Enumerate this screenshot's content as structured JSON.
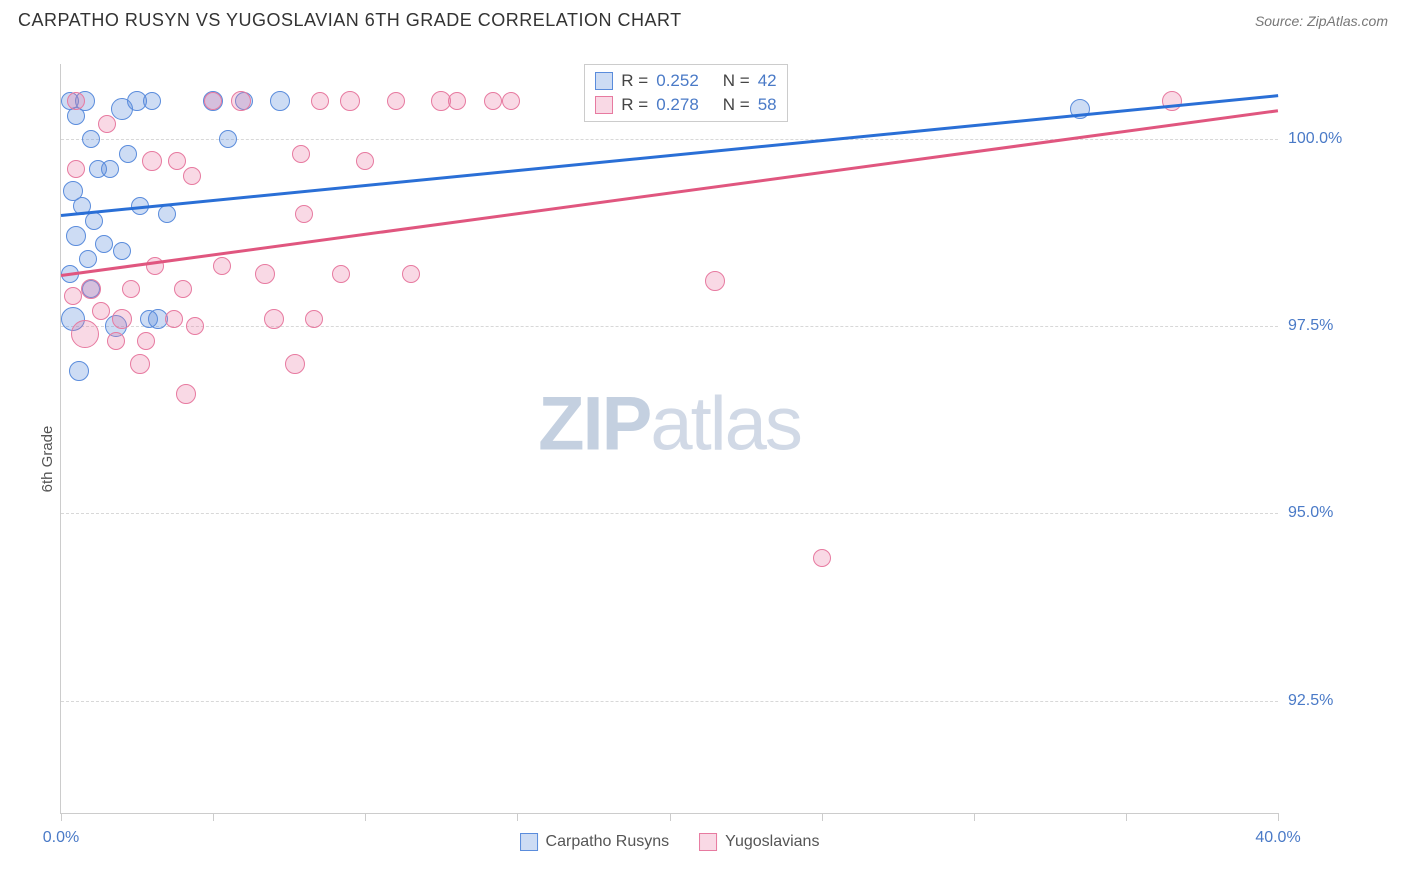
{
  "header": {
    "title": "CARPATHO RUSYN VS YUGOSLAVIAN 6TH GRADE CORRELATION CHART",
    "source": "Source: ZipAtlas.com"
  },
  "chart": {
    "type": "scatter",
    "ylabel": "6th Grade",
    "watermark_a": "ZIP",
    "watermark_b": "atlas",
    "background_color": "#ffffff",
    "grid_color": "#d8d8d8",
    "axis_color": "#cccccc",
    "xlim": [
      0,
      40
    ],
    "ylim": [
      91,
      101
    ],
    "xticks": [
      0,
      5,
      10,
      15,
      20,
      25,
      30,
      35,
      40
    ],
    "xlabels_shown": {
      "0": "0.0%",
      "40": "40.0%"
    },
    "yticks": [
      92.5,
      95.0,
      97.5,
      100.0
    ],
    "ylabel_fmt": {
      "92.5": "92.5%",
      "95.0": "95.0%",
      "97.5": "97.5%",
      "100.0": "100.0%"
    },
    "series": [
      {
        "name": "Carpatho Rusyns",
        "fill": "rgba(90,140,220,0.30)",
        "stroke": "#5a8cdc",
        "trend_color": "#2a6fd6",
        "trend": {
          "x0": 0,
          "y0": 99.0,
          "x1": 40,
          "y1": 100.6
        },
        "stats": {
          "r_label": "R =",
          "r": "0.252",
          "n_label": "N =",
          "n": "42"
        },
        "points": [
          {
            "x": 0.3,
            "y": 100.5,
            "r": 9
          },
          {
            "x": 0.5,
            "y": 100.3,
            "r": 9
          },
          {
            "x": 0.8,
            "y": 100.5,
            "r": 10
          },
          {
            "x": 1.0,
            "y": 100.0,
            "r": 9
          },
          {
            "x": 1.2,
            "y": 99.6,
            "r": 9
          },
          {
            "x": 0.4,
            "y": 99.3,
            "r": 10
          },
          {
            "x": 0.7,
            "y": 99.1,
            "r": 9
          },
          {
            "x": 1.1,
            "y": 98.9,
            "r": 9
          },
          {
            "x": 0.5,
            "y": 98.7,
            "r": 10
          },
          {
            "x": 0.9,
            "y": 98.4,
            "r": 9
          },
          {
            "x": 1.4,
            "y": 98.6,
            "r": 9
          },
          {
            "x": 0.3,
            "y": 98.2,
            "r": 9
          },
          {
            "x": 1.0,
            "y": 98.0,
            "r": 9
          },
          {
            "x": 1.6,
            "y": 99.6,
            "r": 9
          },
          {
            "x": 2.0,
            "y": 100.4,
            "r": 11
          },
          {
            "x": 2.2,
            "y": 99.8,
            "r": 9
          },
          {
            "x": 2.5,
            "y": 100.5,
            "r": 10
          },
          {
            "x": 2.6,
            "y": 99.1,
            "r": 9
          },
          {
            "x": 2.0,
            "y": 98.5,
            "r": 9
          },
          {
            "x": 3.0,
            "y": 100.5,
            "r": 9
          },
          {
            "x": 3.5,
            "y": 99.0,
            "r": 9
          },
          {
            "x": 3.2,
            "y": 97.6,
            "r": 10
          },
          {
            "x": 1.8,
            "y": 97.5,
            "r": 11
          },
          {
            "x": 0.4,
            "y": 97.6,
            "r": 12
          },
          {
            "x": 0.6,
            "y": 96.9,
            "r": 10
          },
          {
            "x": 2.9,
            "y": 97.6,
            "r": 9
          },
          {
            "x": 5.0,
            "y": 100.5,
            "r": 10
          },
          {
            "x": 5.5,
            "y": 100.0,
            "r": 9
          },
          {
            "x": 6.0,
            "y": 100.5,
            "r": 9
          },
          {
            "x": 7.2,
            "y": 100.5,
            "r": 10
          },
          {
            "x": 33.5,
            "y": 100.4,
            "r": 10
          }
        ]
      },
      {
        "name": "Yugoslavians",
        "fill": "rgba(235,120,160,0.28)",
        "stroke": "#e77aa0",
        "trend_color": "#e0567f",
        "trend": {
          "x0": 0,
          "y0": 98.2,
          "x1": 40,
          "y1": 100.4
        },
        "stats": {
          "r_label": "R =",
          "r": "0.278",
          "n_label": "N =",
          "n": "58"
        },
        "points": [
          {
            "x": 0.5,
            "y": 100.5,
            "r": 9
          },
          {
            "x": 1.5,
            "y": 100.2,
            "r": 9
          },
          {
            "x": 3.0,
            "y": 99.7,
            "r": 10
          },
          {
            "x": 4.3,
            "y": 99.5,
            "r": 9
          },
          {
            "x": 5.0,
            "y": 100.5,
            "r": 9
          },
          {
            "x": 5.9,
            "y": 100.5,
            "r": 10
          },
          {
            "x": 6.7,
            "y": 98.2,
            "r": 10
          },
          {
            "x": 8.0,
            "y": 99.0,
            "r": 9
          },
          {
            "x": 8.5,
            "y": 100.5,
            "r": 9
          },
          {
            "x": 9.2,
            "y": 98.2,
            "r": 9
          },
          {
            "x": 9.5,
            "y": 100.5,
            "r": 10
          },
          {
            "x": 10.0,
            "y": 99.7,
            "r": 9
          },
          {
            "x": 11.0,
            "y": 100.5,
            "r": 9
          },
          {
            "x": 11.5,
            "y": 98.2,
            "r": 9
          },
          {
            "x": 12.5,
            "y": 100.5,
            "r": 10
          },
          {
            "x": 13.0,
            "y": 100.5,
            "r": 9
          },
          {
            "x": 14.2,
            "y": 100.5,
            "r": 9
          },
          {
            "x": 14.8,
            "y": 100.5,
            "r": 9
          },
          {
            "x": 1.0,
            "y": 98.0,
            "r": 10
          },
          {
            "x": 1.3,
            "y": 97.7,
            "r": 9
          },
          {
            "x": 2.0,
            "y": 97.6,
            "r": 10
          },
          {
            "x": 2.3,
            "y": 98.0,
            "r": 9
          },
          {
            "x": 0.8,
            "y": 97.4,
            "r": 14
          },
          {
            "x": 0.4,
            "y": 97.9,
            "r": 9
          },
          {
            "x": 1.8,
            "y": 97.3,
            "r": 9
          },
          {
            "x": 2.6,
            "y": 97.0,
            "r": 10
          },
          {
            "x": 3.1,
            "y": 98.3,
            "r": 9
          },
          {
            "x": 3.8,
            "y": 99.7,
            "r": 9
          },
          {
            "x": 4.0,
            "y": 98.0,
            "r": 9
          },
          {
            "x": 4.4,
            "y": 97.5,
            "r": 9
          },
          {
            "x": 0.5,
            "y": 99.6,
            "r": 9
          },
          {
            "x": 3.7,
            "y": 97.6,
            "r": 9
          },
          {
            "x": 5.3,
            "y": 98.3,
            "r": 9
          },
          {
            "x": 7.0,
            "y": 97.6,
            "r": 10
          },
          {
            "x": 7.7,
            "y": 97.0,
            "r": 10
          },
          {
            "x": 8.3,
            "y": 97.6,
            "r": 9
          },
          {
            "x": 2.8,
            "y": 97.3,
            "r": 9
          },
          {
            "x": 4.1,
            "y": 96.6,
            "r": 10
          },
          {
            "x": 7.9,
            "y": 99.8,
            "r": 9
          },
          {
            "x": 21.5,
            "y": 98.1,
            "r": 10
          },
          {
            "x": 25.0,
            "y": 94.4,
            "r": 9
          },
          {
            "x": 36.5,
            "y": 100.5,
            "r": 10
          }
        ]
      }
    ],
    "legend": {
      "series1": "Carpatho Rusyns",
      "series2": "Yugoslavians"
    },
    "statbox": {
      "left_pct": 43,
      "top_pct": 0
    }
  }
}
